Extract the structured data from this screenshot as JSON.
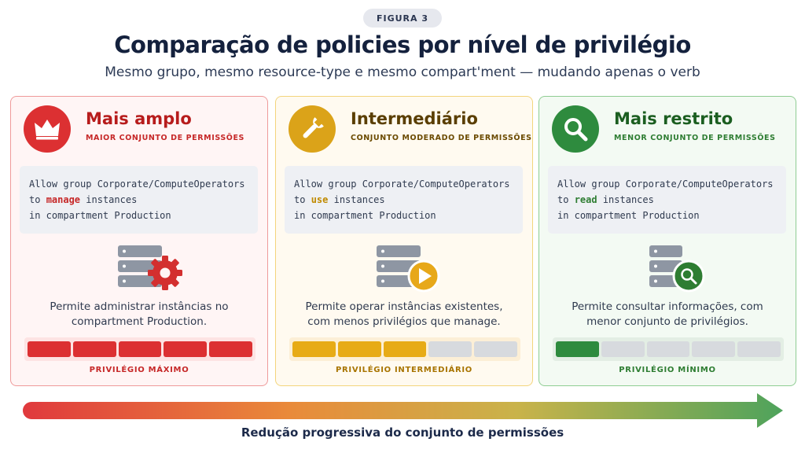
{
  "figure_label": "FIGURA 3",
  "title": "Comparação de policies por nível de privilégio",
  "subtitle": "Mesmo grupo, mesmo resource-type e mesmo compart'ment — mudando apenas o verb",
  "cards": [
    {
      "title": "Mais amplo",
      "subtitle": "MAIOR CONJUNTO DE PERMISSÕES",
      "icon": "crown-icon",
      "accent": "#dc3032",
      "code_line1": "Allow group Corporate/ComputeOperators",
      "code_prefix": "to ",
      "verb": "manage",
      "code_suffix": " instances",
      "code_line3": "in compartment Production",
      "illustration": "server-gear-icon",
      "desc_line1": "Permite administrar instâncias no",
      "desc_line2": "compartment Production.",
      "level_filled": 5,
      "level_total": 5,
      "level_label": "PRIVILÉGIO MÁXIMO"
    },
    {
      "title": "Intermediário",
      "subtitle": "CONJUNTO MODERADO DE PERMISSÕES",
      "icon": "wrench-icon",
      "accent": "#dba319",
      "code_line1": "Allow group Corporate/ComputeOperators",
      "code_prefix": "to ",
      "verb": "use",
      "code_suffix": " instances",
      "code_line3": "in compartment Production",
      "illustration": "server-play-icon",
      "desc_line1": "Permite operar instâncias existentes,",
      "desc_line2": "com menos privilégios que manage.",
      "level_filled": 3,
      "level_total": 5,
      "level_label": "PRIVILÉGIO INTERMEDIÁRIO"
    },
    {
      "title": "Mais restrito",
      "subtitle": "MENOR CONJUNTO DE PERMISSÕES",
      "icon": "magnifier-icon",
      "accent": "#2e8b3e",
      "code_line1": "Allow group Corporate/ComputeOperators",
      "code_prefix": "to ",
      "verb": "read",
      "code_suffix": " instances",
      "code_line3": "in compartment Production",
      "illustration": "server-search-icon",
      "desc_line1": "Permite consultar informações, com",
      "desc_line2": "menor conjunto de privilégios.",
      "level_filled": 1,
      "level_total": 5,
      "level_label": "PRIVILÉGIO MÍNIMO"
    }
  ],
  "arrow_label": "Redução progressiva do conjunto de permissões",
  "arrow_colors": [
    "#e0393d",
    "#e98a3a",
    "#c9b34a",
    "#4ea35c"
  ]
}
